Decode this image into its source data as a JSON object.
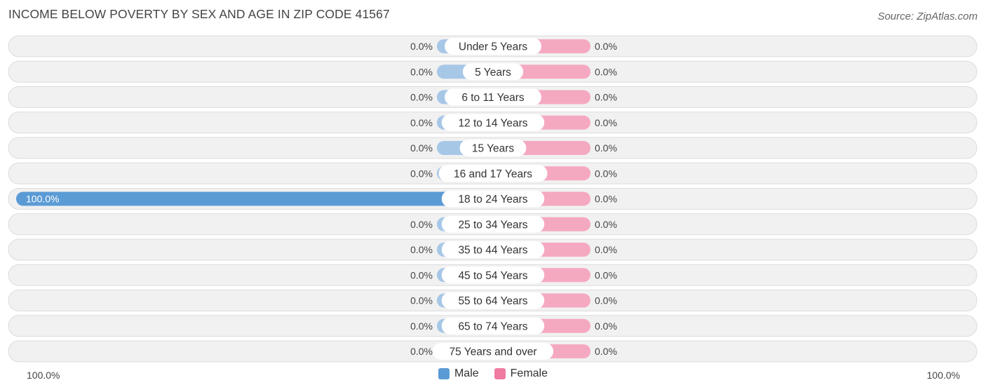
{
  "title": "INCOME BELOW POVERTY BY SEX AND AGE IN ZIP CODE 41567",
  "source": "Source: ZipAtlas.com",
  "colors": {
    "male": "#5b9bd5",
    "male_light": "#a7c7e7",
    "female": "#f07ba1",
    "female_light": "#f5a9c1",
    "row_bg": "#f1f1f1",
    "row_border": "#dcdcdc"
  },
  "legend": {
    "male_label": "Male",
    "female_label": "Female"
  },
  "axis": {
    "left_label": "100.0%",
    "right_label": "100.0%"
  },
  "chart_data": {
    "type": "bar",
    "orientation": "horizontal-diverging",
    "title": "INCOME BELOW POVERTY BY SEX AND AGE IN ZIP CODE 41567",
    "categories": [
      "Under 5 Years",
      "5 Years",
      "6 to 11 Years",
      "12 to 14 Years",
      "15 Years",
      "16 and 17 Years",
      "18 to 24 Years",
      "25 to 34 Years",
      "35 to 44 Years",
      "45 to 54 Years",
      "55 to 64 Years",
      "65 to 74 Years",
      "75 Years and over"
    ],
    "series": [
      {
        "name": "Male",
        "values": [
          0,
          0,
          0,
          0,
          0,
          0,
          100,
          0,
          0,
          0,
          0,
          0,
          0
        ],
        "labels": [
          "0.0%",
          "0.0%",
          "0.0%",
          "0.0%",
          "0.0%",
          "0.0%",
          "100.0%",
          "0.0%",
          "0.0%",
          "0.0%",
          "0.0%",
          "0.0%",
          "0.0%"
        ]
      },
      {
        "name": "Female",
        "values": [
          0,
          0,
          0,
          0,
          0,
          0,
          0,
          0,
          0,
          0,
          0,
          0,
          0
        ],
        "labels": [
          "0.0%",
          "0.0%",
          "0.0%",
          "0.0%",
          "0.0%",
          "0.0%",
          "0.0%",
          "0.0%",
          "0.0%",
          "0.0%",
          "0.0%",
          "0.0%",
          "0.0%"
        ]
      }
    ],
    "xlim": [
      -100,
      100
    ],
    "legend": "bottom-center"
  }
}
